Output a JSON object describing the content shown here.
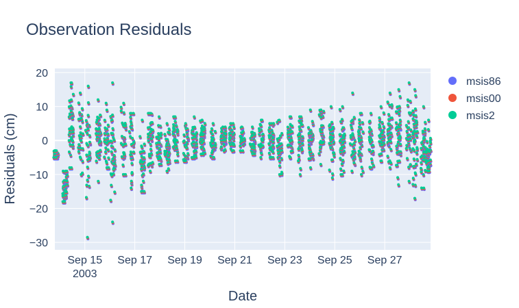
{
  "chart_data": {
    "type": "scatter",
    "title": "Observation Residuals",
    "xlabel": "Date",
    "ylabel": "Residuals (cm)",
    "x_range": [
      "2003-09-13T19:12",
      "2003-09-28T20:00"
    ],
    "ylim": [
      -32.2,
      21.2
    ],
    "x_ticks": [
      {
        "date": "2003-09-15",
        "label": "Sep 15",
        "sublabel": "2003"
      },
      {
        "date": "2003-09-17",
        "label": "Sep 17"
      },
      {
        "date": "2003-09-19",
        "label": "Sep 19"
      },
      {
        "date": "2003-09-21",
        "label": "Sep 21"
      },
      {
        "date": "2003-09-23",
        "label": "Sep 23"
      },
      {
        "date": "2003-09-25",
        "label": "Sep 25"
      },
      {
        "date": "2003-09-27",
        "label": "Sep 27"
      }
    ],
    "y_ticks": [
      {
        "value": 20,
        "label": "20"
      },
      {
        "value": 10,
        "label": "10"
      },
      {
        "value": 0,
        "label": "0"
      },
      {
        "value": -10,
        "label": "−10"
      },
      {
        "value": -20,
        "label": "−20"
      },
      {
        "value": -30,
        "label": "−30"
      }
    ],
    "grid": true,
    "legend_position": "right",
    "colors": {
      "plot_bg": "#e5ecf6",
      "grid": "#ffffff",
      "text": "#2a3f5f",
      "msis86": "#636efa",
      "msis00": "#ef553b",
      "msis2": "#00cc96"
    },
    "passes": [
      [
        "2003-09-13T20:00",
        -4.5,
        1.5,
        -5.0,
        -3.0
      ],
      [
        "2003-09-14T05:00",
        -13.0,
        3.5,
        -18.0,
        -9.0
      ],
      [
        "2003-09-14T11:00",
        3.0,
        6.0,
        -8.0,
        17.0
      ],
      [
        "2003-09-14T20:00",
        1.0,
        5.0,
        -10.0,
        14.0
      ],
      [
        "2003-09-15T03:00",
        -3.0,
        6.0,
        -28.5,
        16.0
      ],
      [
        "2003-09-15T13:00",
        1.0,
        5.0,
        -12.0,
        12.0
      ],
      [
        "2003-09-15T21:00",
        0.0,
        4.0,
        -8.0,
        11.0
      ],
      [
        "2003-09-16T03:00",
        -5.0,
        6.0,
        -24.0,
        17.0
      ],
      [
        "2003-09-16T13:00",
        0.0,
        5.0,
        -10.0,
        11.0
      ],
      [
        "2003-09-16T21:00",
        -2.0,
        5.0,
        -14.0,
        8.0
      ],
      [
        "2003-09-17T07:00",
        -7.0,
        4.0,
        -15.0,
        6.0
      ],
      [
        "2003-09-17T15:00",
        0.0,
        4.0,
        -9.0,
        8.0
      ],
      [
        "2003-09-17T23:00",
        -1.0,
        3.0,
        -7.0,
        7.0
      ],
      [
        "2003-09-18T07:00",
        -2.0,
        3.0,
        -9.0,
        5.0
      ],
      [
        "2003-09-18T15:00",
        0.0,
        3.0,
        -6.0,
        7.0
      ],
      [
        "2003-09-19T01:00",
        -1.0,
        3.0,
        -6.0,
        5.0
      ],
      [
        "2003-09-19T09:00",
        0.0,
        3.0,
        -5.0,
        7.0
      ],
      [
        "2003-09-19T17:00",
        1.0,
        2.5,
        -4.0,
        6.0
      ],
      [
        "2003-09-20T03:00",
        -1.0,
        2.5,
        -5.0,
        5.0
      ],
      [
        "2003-09-20T13:00",
        1.0,
        2.0,
        -3.0,
        4.0
      ],
      [
        "2003-09-20T21:00",
        1.0,
        2.0,
        -3.0,
        5.0
      ],
      [
        "2003-09-21T07:00",
        0.0,
        2.0,
        -3.0,
        4.0
      ],
      [
        "2003-09-21T17:00",
        -1.0,
        2.0,
        -4.0,
        4.0
      ],
      [
        "2003-09-22T01:00",
        1.0,
        3.0,
        -5.0,
        6.0
      ],
      [
        "2003-09-22T11:00",
        0.0,
        3.0,
        -5.0,
        5.0
      ],
      [
        "2003-09-22T19:00",
        -1.0,
        3.0,
        -10.0,
        6.0
      ],
      [
        "2003-09-23T05:00",
        1.0,
        3.0,
        -5.0,
        7.0
      ],
      [
        "2003-09-23T15:00",
        0.0,
        3.0,
        -10.0,
        7.0
      ],
      [
        "2003-09-24T01:00",
        1.0,
        3.5,
        -8.0,
        9.0
      ],
      [
        "2003-09-24T11:00",
        2.0,
        4.0,
        -7.0,
        9.0
      ],
      [
        "2003-09-24T21:00",
        0.0,
        4.0,
        -11.0,
        10.0
      ],
      [
        "2003-09-25T07:00",
        0.0,
        4.0,
        -10.0,
        10.0
      ],
      [
        "2003-09-25T17:00",
        0.0,
        5.0,
        -9.0,
        14.0
      ],
      [
        "2003-09-26T01:00",
        1.0,
        4.0,
        -10.0,
        8.0
      ],
      [
        "2003-09-26T11:00",
        -1.0,
        4.0,
        -8.0,
        8.0
      ],
      [
        "2003-09-26T21:00",
        1.0,
        3.0,
        -6.0,
        10.0
      ],
      [
        "2003-09-27T05:00",
        2.0,
        5.0,
        -8.0,
        14.0
      ],
      [
        "2003-09-27T13:00",
        1.0,
        6.0,
        -13.0,
        15.0
      ],
      [
        "2003-09-27T23:00",
        3.0,
        5.0,
        -12.0,
        17.0
      ],
      [
        "2003-09-28T05:00",
        0.0,
        6.0,
        -17.0,
        15.0
      ],
      [
        "2003-09-28T13:00",
        -2.0,
        5.0,
        -14.0,
        10.0
      ],
      [
        "2003-09-28T18:00",
        -5.0,
        3.0,
        -9.0,
        6.0
      ]
    ],
    "series": [
      {
        "name": "msis86",
        "color": "#636efa"
      },
      {
        "name": "msis00",
        "color": "#ef553b"
      },
      {
        "name": "msis2",
        "color": "#00cc96"
      }
    ]
  }
}
